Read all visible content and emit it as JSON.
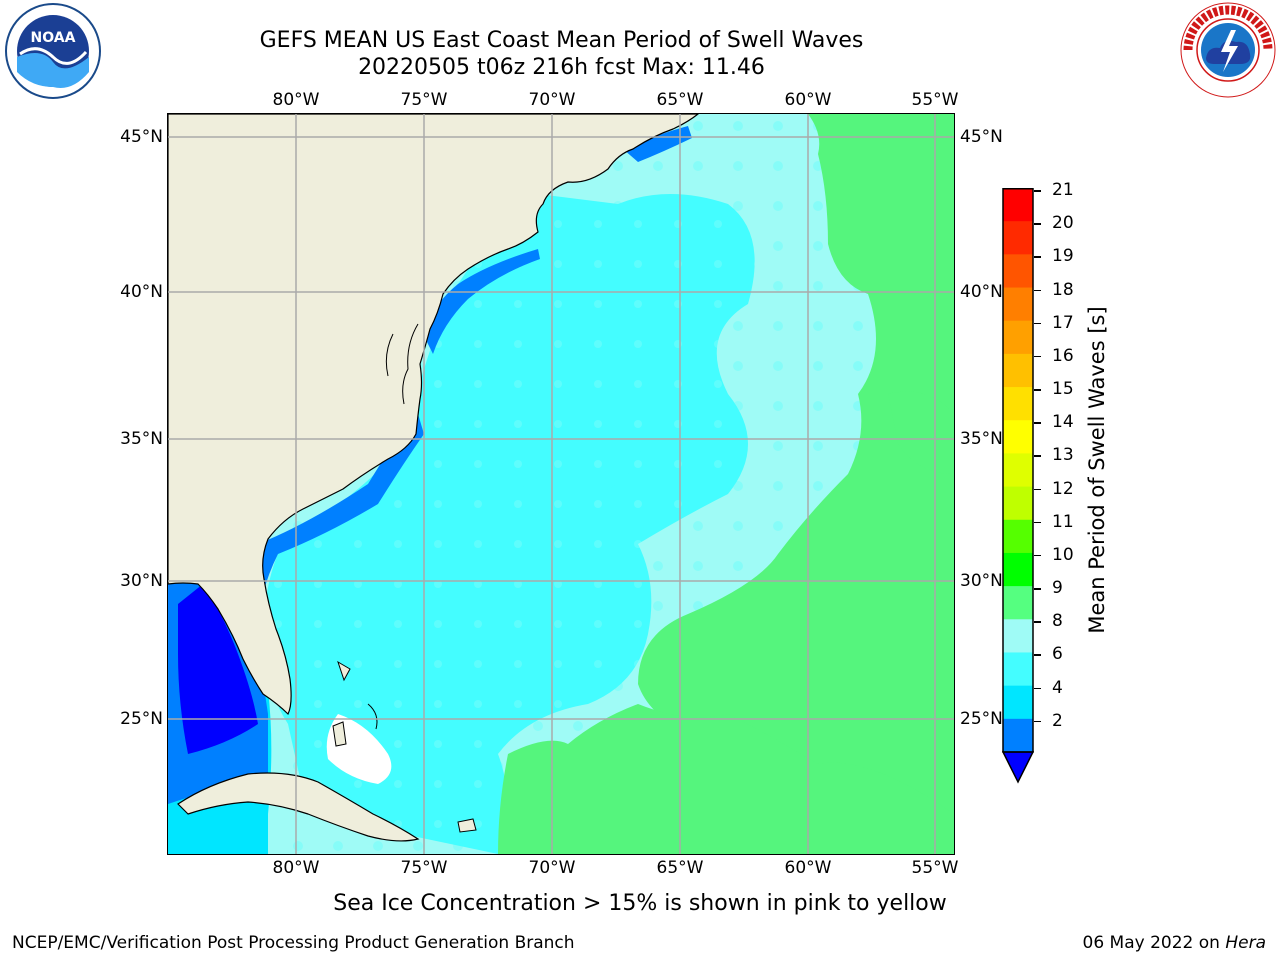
{
  "header": {
    "title_line1": "GEFS MEAN US East Coast Mean Period of Swell Waves",
    "title_line2": "20220505 t06z 216h fcst   Max: 11.46"
  },
  "map": {
    "lon_labels": [
      "80°W",
      "75°W",
      "70°W",
      "65°W",
      "60°W",
      "55°W"
    ],
    "lat_labels": [
      "45°N",
      "40°N",
      "35°N",
      "30°N",
      "25°N"
    ],
    "lat_labels_right": [
      "45°N",
      "40°N",
      "35°N",
      "30°N",
      "25°N"
    ],
    "land_color": "#efeedc",
    "grid": true
  },
  "colorbar": {
    "label": "Mean Period of Swell Waves [s]",
    "ticks": [
      "21",
      "20",
      "19",
      "18",
      "17",
      "16",
      "15",
      "14",
      "13",
      "12",
      "11",
      "10",
      "9",
      "8",
      "6",
      "4",
      "2"
    ],
    "colors_top_to_bottom": [
      "#ff0000",
      "#ff2a00",
      "#ff5500",
      "#ff7f00",
      "#ffa000",
      "#ffc000",
      "#ffe000",
      "#ffff00",
      "#dfff00",
      "#bfff00",
      "#55ff00",
      "#00ff00",
      "#55ff80",
      "#9ffbf6",
      "#44fdff",
      "#00e6ff",
      "#0080ff"
    ],
    "under_color": "#0000ff"
  },
  "footnote": "Sea Ice Concentration > 15% is shown in pink to yellow",
  "footer": {
    "credit": "NCEP/EMC/Verification Post Processing Product Generation Branch",
    "date": "06 May 2022 on ",
    "machine": "Hera"
  },
  "logos": {
    "left": "NOAA",
    "right": "NATIONAL WEATHER SERVICE"
  }
}
